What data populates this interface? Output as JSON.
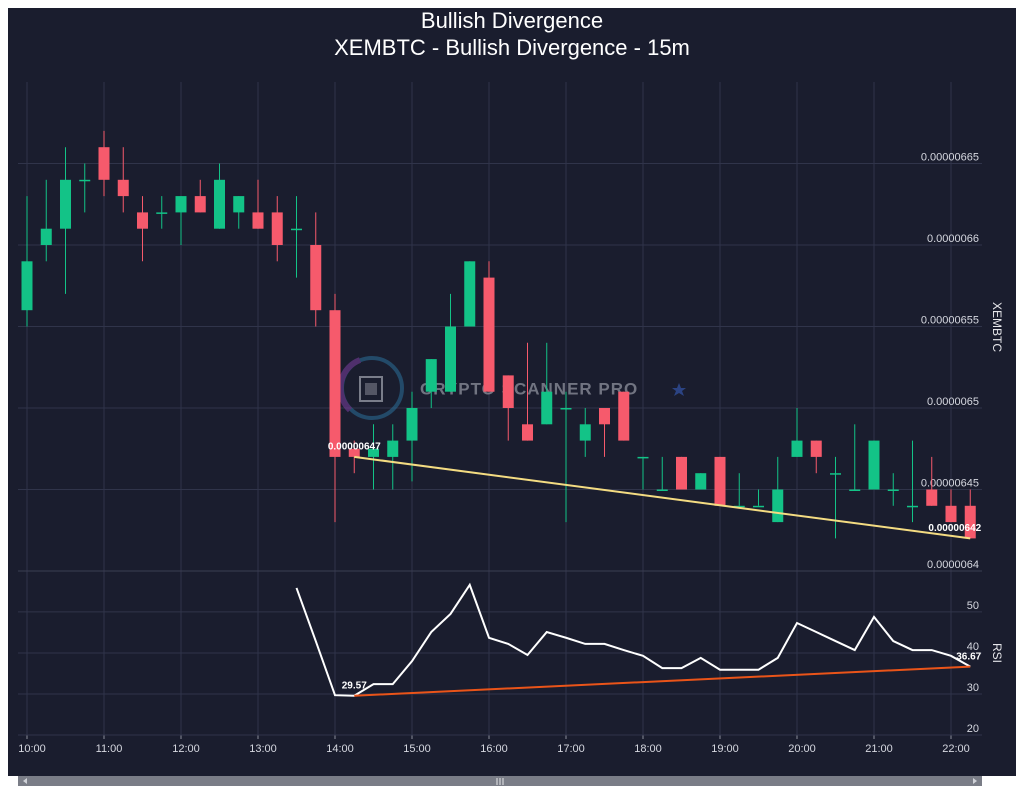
{
  "chart_data": [
    {
      "type": "candlestick",
      "title": "Bullish Divergence",
      "subtitle": "XEMBTC - Bullish Divergence - 15m",
      "y_label": "XEMBTC",
      "watermark": "CRYPTO SCANNER PRO",
      "categories": [
        "10:00",
        null,
        null,
        null,
        "11:00",
        null,
        null,
        null,
        "12:00",
        null,
        null,
        null,
        "13:00",
        null,
        null,
        null,
        "14:00",
        null,
        null,
        null,
        "15:00",
        null,
        null,
        null,
        "16:00",
        null,
        null,
        null,
        "17:00",
        null,
        null,
        null,
        "18:00",
        null,
        null,
        null,
        "19:00",
        null,
        null,
        null,
        "20:00",
        null,
        null,
        null,
        "21:00",
        null,
        null,
        null,
        "22:00",
        null
      ],
      "open": [
        6.56e-06,
        6.6e-06,
        6.61e-06,
        6.64e-06,
        6.66e-06,
        6.64e-06,
        6.62e-06,
        6.62e-06,
        6.62e-06,
        6.63e-06,
        6.61e-06,
        6.62e-06,
        6.62e-06,
        6.62e-06,
        6.61e-06,
        6.6e-06,
        6.56e-06,
        6.475e-06,
        6.47e-06,
        6.47e-06,
        6.48e-06,
        6.51e-06,
        6.51e-06,
        6.55e-06,
        6.58e-06,
        6.52e-06,
        6.49e-06,
        6.49e-06,
        6.5e-06,
        6.48e-06,
        6.5e-06,
        6.51e-06,
        6.47e-06,
        6.45e-06,
        6.47e-06,
        6.45e-06,
        6.47e-06,
        6.44e-06,
        6.44e-06,
        6.43e-06,
        6.47e-06,
        6.48e-06,
        6.46e-06,
        6.45e-06,
        6.45e-06,
        6.45e-06,
        6.44e-06,
        6.45e-06,
        6.44e-06,
        6.44e-06
      ],
      "high": [
        6.63e-06,
        6.64e-06,
        6.66e-06,
        6.65e-06,
        6.67e-06,
        6.66e-06,
        6.63e-06,
        6.63e-06,
        6.63e-06,
        6.64e-06,
        6.65e-06,
        6.63e-06,
        6.64e-06,
        6.63e-06,
        6.63e-06,
        6.62e-06,
        6.57e-06,
        6.48e-06,
        6.49e-06,
        6.49e-06,
        6.51e-06,
        6.53e-06,
        6.57e-06,
        6.59e-06,
        6.59e-06,
        6.52e-06,
        6.54e-06,
        6.54e-06,
        6.51e-06,
        6.5e-06,
        6.5e-06,
        6.51e-06,
        6.47e-06,
        6.47e-06,
        6.47e-06,
        6.46e-06,
        6.47e-06,
        6.46e-06,
        6.45e-06,
        6.47e-06,
        6.5e-06,
        6.48e-06,
        6.47e-06,
        6.49e-06,
        6.48e-06,
        6.46e-06,
        6.48e-06,
        6.47e-06,
        6.45e-06,
        6.45e-06
      ],
      "low": [
        6.55e-06,
        6.59e-06,
        6.57e-06,
        6.62e-06,
        6.63e-06,
        6.62e-06,
        6.59e-06,
        6.61e-06,
        6.6e-06,
        6.62e-06,
        6.61e-06,
        6.61e-06,
        6.61e-06,
        6.59e-06,
        6.58e-06,
        6.55e-06,
        6.43e-06,
        6.46e-06,
        6.45e-06,
        6.45e-06,
        6.455e-06,
        6.5e-06,
        6.51e-06,
        6.55e-06,
        6.51e-06,
        6.48e-06,
        6.48e-06,
        6.49e-06,
        6.43e-06,
        6.47e-06,
        6.47e-06,
        6.48e-06,
        6.45e-06,
        6.45e-06,
        6.45e-06,
        6.45e-06,
        6.44e-06,
        6.44e-06,
        6.44e-06,
        6.43e-06,
        6.47e-06,
        6.46e-06,
        6.42e-06,
        6.45e-06,
        6.45e-06,
        6.44e-06,
        6.43e-06,
        6.44e-06,
        6.43e-06,
        6.42e-06
      ],
      "close": [
        6.59e-06,
        6.61e-06,
        6.64e-06,
        6.64e-06,
        6.64e-06,
        6.63e-06,
        6.61e-06,
        6.62e-06,
        6.63e-06,
        6.62e-06,
        6.64e-06,
        6.63e-06,
        6.61e-06,
        6.6e-06,
        6.61e-06,
        6.56e-06,
        6.47e-06,
        6.47e-06,
        6.475e-06,
        6.48e-06,
        6.5e-06,
        6.53e-06,
        6.55e-06,
        6.59e-06,
        6.51e-06,
        6.5e-06,
        6.48e-06,
        6.51e-06,
        6.5e-06,
        6.49e-06,
        6.49e-06,
        6.48e-06,
        6.47e-06,
        6.45e-06,
        6.45e-06,
        6.46e-06,
        6.44e-06,
        6.44e-06,
        6.44e-06,
        6.45e-06,
        6.48e-06,
        6.47e-06,
        6.46e-06,
        6.45e-06,
        6.48e-06,
        6.45e-06,
        6.44e-06,
        6.44e-06,
        6.43e-06,
        6.42e-06
      ],
      "up_color": "#13c387",
      "down_color": "#f65a6c",
      "ylim": [
        6.4e-06,
        6.7e-06
      ],
      "yticks": [
        {
          "value": 6.4e-06,
          "label": "0.0000064"
        },
        {
          "value": 6.45e-06,
          "label": "0.00000645"
        },
        {
          "value": 6.5e-06,
          "label": "0.0000065"
        },
        {
          "value": 6.55e-06,
          "label": "0.00000655"
        },
        {
          "value": 6.6e-06,
          "label": "0.0000066"
        },
        {
          "value": 6.65e-06,
          "label": "0.00000665"
        }
      ],
      "grid": true,
      "trendline": {
        "color": "#f4dc82",
        "points": [
          {
            "index": 17,
            "value": 6.47e-06,
            "label": "0.00000647"
          },
          {
            "index": 49,
            "value": 6.42e-06,
            "label": "0.00000642"
          }
        ]
      }
    },
    {
      "type": "line",
      "y_label": "RSI",
      "values": [
        null,
        null,
        null,
        null,
        null,
        null,
        null,
        null,
        null,
        null,
        null,
        null,
        null,
        null,
        55.85,
        42.9,
        29.7,
        29.57,
        32.4,
        32.4,
        38.0,
        45.1,
        49.5,
        56.6,
        43.7,
        42.2,
        39.5,
        45.1,
        43.7,
        42.2,
        42.2,
        40.7,
        39.3,
        36.3,
        36.3,
        38.8,
        35.9,
        35.9,
        35.9,
        38.8,
        47.3,
        45.1,
        42.9,
        40.7,
        48.8,
        42.9,
        40.7,
        40.7,
        39.3,
        36.67
      ],
      "color": "#ffffff",
      "ylim": [
        20,
        59
      ],
      "yticks": [
        20,
        30,
        40,
        50
      ],
      "grid": true,
      "trendline": {
        "color": "#ea5419",
        "points": [
          {
            "index": 17,
            "value": 29.57,
            "label": "29.57"
          },
          {
            "index": 49,
            "value": 36.67,
            "label": "36.67"
          }
        ]
      }
    }
  ]
}
